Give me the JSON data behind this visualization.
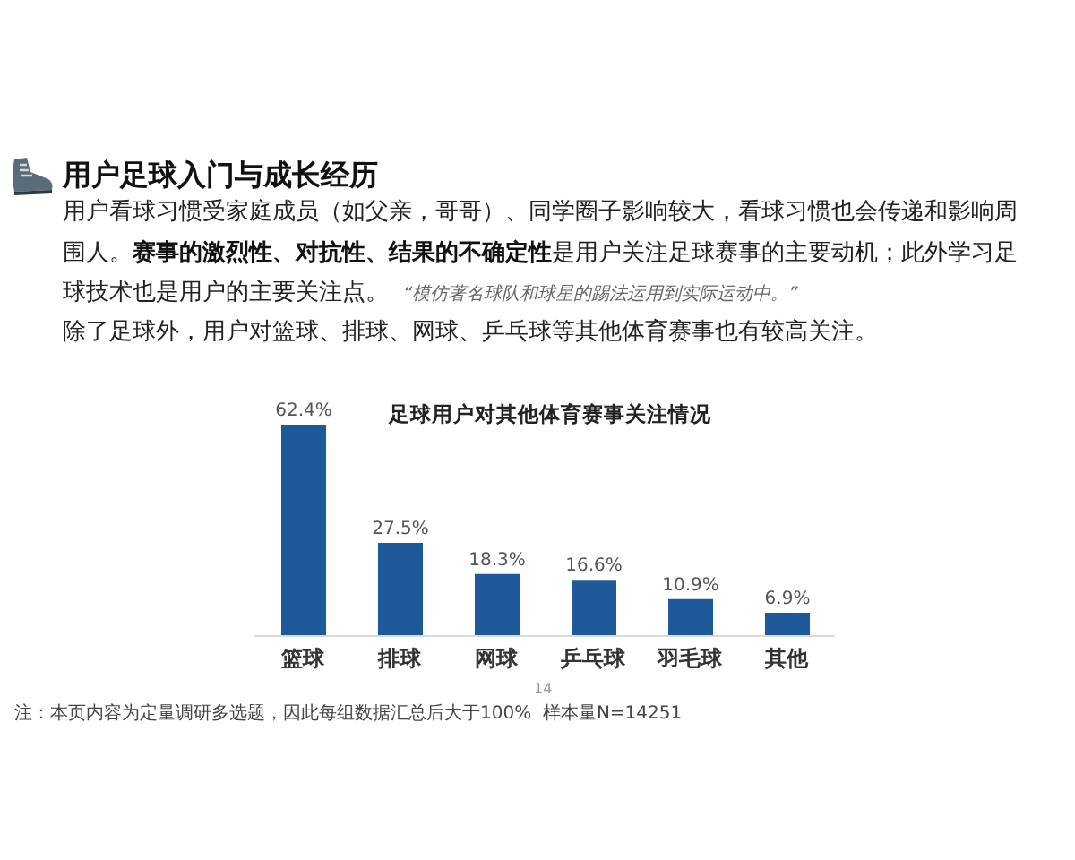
{
  "chart_data": {
    "type": "bar",
    "title": "足球用户对其他体育赛事关注情况",
    "categories": [
      "篮球",
      "排球",
      "网球",
      "乒乓球",
      "羽毛球",
      "其他"
    ],
    "values": [
      62.4,
      27.5,
      18.3,
      16.6,
      10.9,
      6.9
    ],
    "value_labels": [
      "62.4%",
      "27.5%",
      "18.3%",
      "16.6%",
      "10.9%",
      "6.9%"
    ],
    "color": "#1e5a9a",
    "annotations": [
      "用户足球入门与成长经历",
      "用户看球习惯受家庭成员（如父亲，哥哥）、同学圈子影响较大，看球习惯也会传递和影响周围人。",
      "赛事的激烈性、对抗性、结果的不确定性",
      "是用户关注足球赛事的主要动机；此外学习足球技术也是用户的主要关注点。",
      "“模仿著名球队和球星的踢法运用到实际运动中。”",
      "除了足球外，用户对篮球、排球、网球、乒乓球等其他体育赛事也有较高关注。",
      "注：本页内容为定量调研多选题，因此每组数据汇总后大于100%  样本量N=14251",
      "14"
    ]
  }
}
